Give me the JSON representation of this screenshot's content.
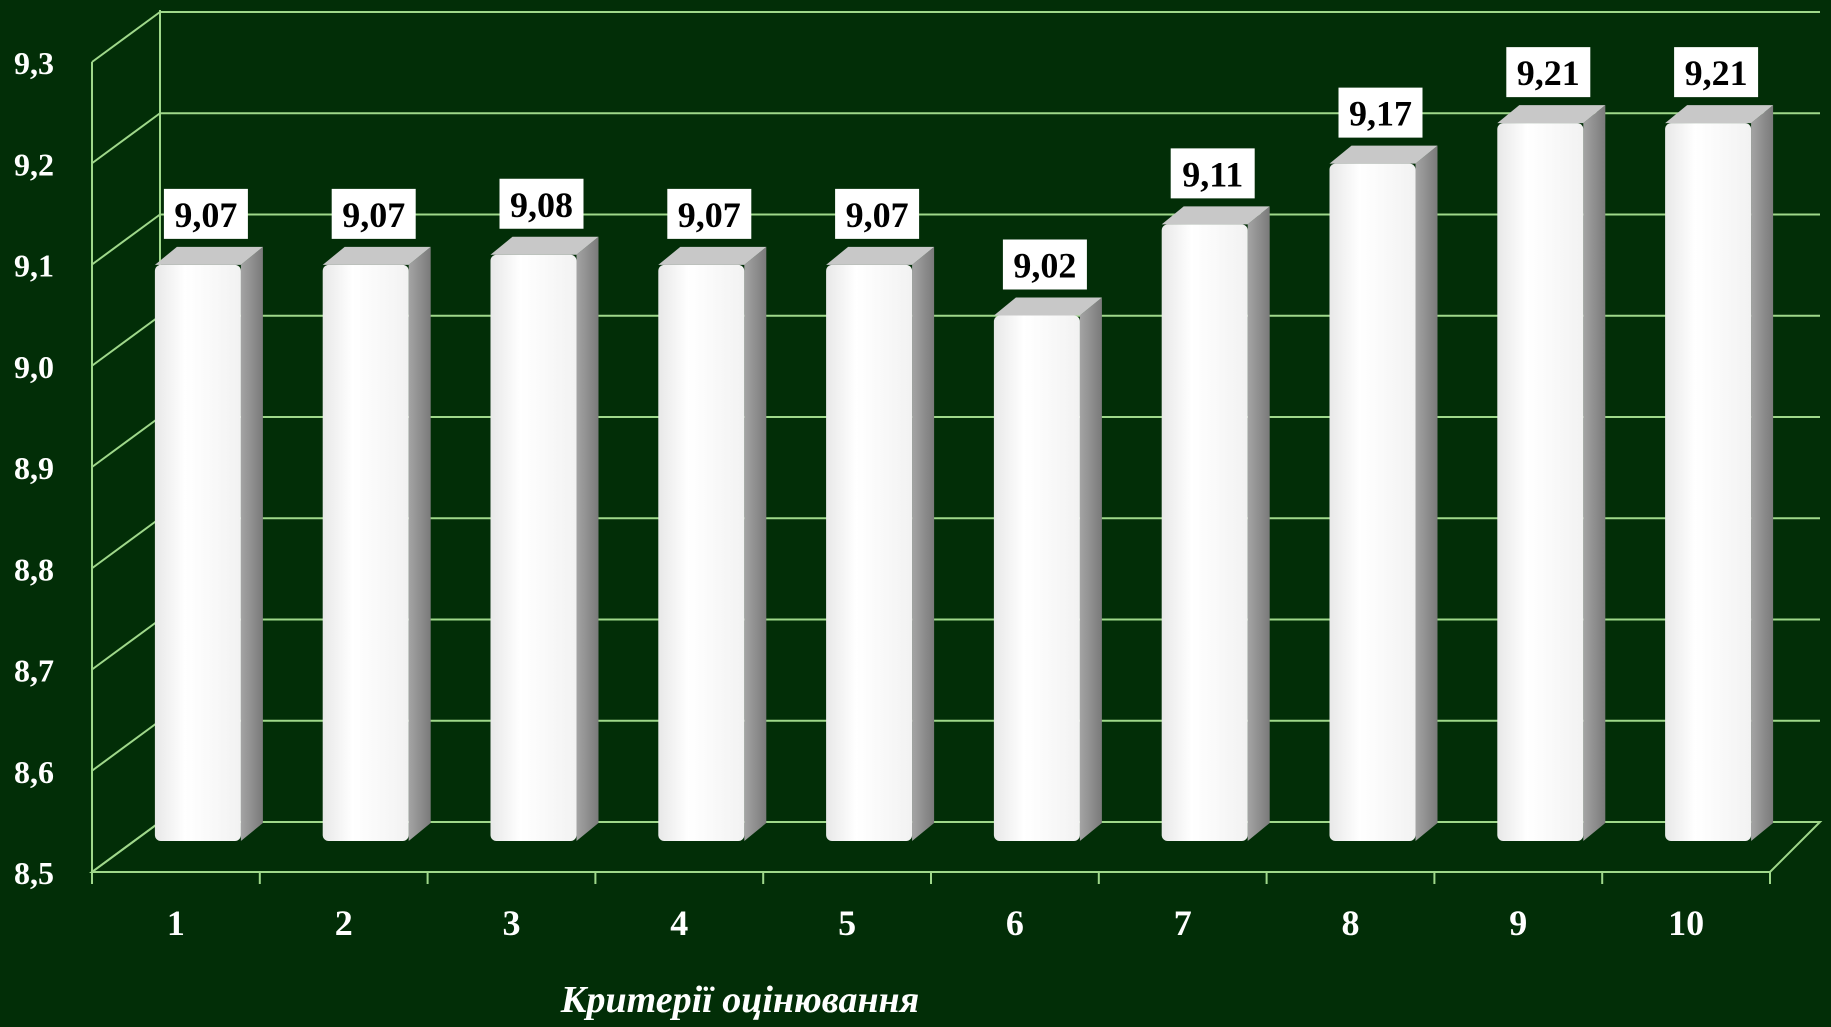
{
  "chart_data": {
    "type": "bar",
    "title": "",
    "xlabel": "Критерії оцінювання",
    "ylabel": "",
    "categories": [
      "1",
      "2",
      "3",
      "4",
      "5",
      "6",
      "7",
      "8",
      "9",
      "10"
    ],
    "values": [
      9.07,
      9.07,
      9.08,
      9.07,
      9.07,
      9.02,
      9.11,
      9.17,
      9.21,
      9.21
    ],
    "data_labels": [
      "9,07",
      "9,07",
      "9,08",
      "9,07",
      "9,07",
      "9,02",
      "9,11",
      "9,17",
      "9,21",
      "9,21"
    ],
    "yticks": [
      8.5,
      8.6,
      8.7,
      8.8,
      8.9,
      9.0,
      9.1,
      9.2,
      9.3
    ],
    "ytick_labels": [
      "8,5",
      "8,6",
      "8,7",
      "8,8",
      "8,9",
      "9,0",
      "9,1",
      "9,2",
      "9,3"
    ],
    "ylim": [
      8.5,
      9.3
    ],
    "grid": true,
    "legend": "none",
    "style": "3d-bar",
    "colors": {
      "background": "#022e07",
      "grid": "#9fd88a",
      "axis_text": "#ffffff",
      "bar_front": "#ffffff",
      "bar_side": "#8f8f8f",
      "bar_top": "#c8c8c8",
      "label_box": "#ffffff",
      "label_text": "#000000"
    }
  }
}
